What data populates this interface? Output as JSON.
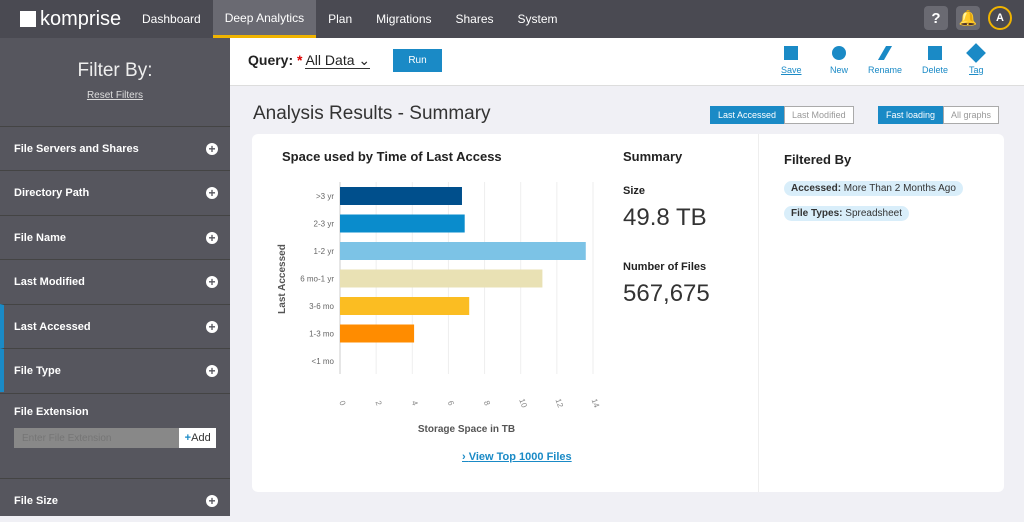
{
  "header": {
    "logo": "komprise",
    "nav": [
      "Dashboard",
      "Deep Analytics",
      "Plan",
      "Migrations",
      "Shares",
      "System"
    ],
    "active": "Deep Analytics",
    "help": "?",
    "avatar": "A"
  },
  "sidebar": {
    "title": "Filter By:",
    "reset": "Reset Filters",
    "items": [
      {
        "label": "File Servers and Shares"
      },
      {
        "label": "Directory Path"
      },
      {
        "label": "File Name"
      },
      {
        "label": "Last Modified"
      },
      {
        "label": "Last Accessed"
      },
      {
        "label": "File Type"
      }
    ],
    "extension": {
      "label": "File Extension",
      "placeholder": "Enter File Extension",
      "add": "Add"
    },
    "file_size": "File Size"
  },
  "query": {
    "label": "Query:",
    "required": "*",
    "value": "All Data",
    "run": "Run"
  },
  "toolbar": {
    "save": "Save",
    "new": "New",
    "rename": "Rename",
    "delete": "Delete",
    "tag": "Tag"
  },
  "page": {
    "title": "Analysis Results - Summary",
    "toggle1": [
      "Last Accessed",
      "Last Modified"
    ],
    "toggle2": [
      "Fast loading",
      "All graphs"
    ]
  },
  "summary": {
    "title": "Summary",
    "size_label": "Size",
    "size": "49.8 TB",
    "files_label": "Number of Files",
    "files": "567,675"
  },
  "filtered": {
    "title": "Filtered By",
    "chips": [
      {
        "key": "Accessed:",
        "value": " More Than 2 Months Ago"
      },
      {
        "key": "File Types:",
        "value": " Spreadsheet"
      }
    ]
  },
  "link": "View Top 1000 Files",
  "chart_data": {
    "type": "bar",
    "orientation": "horizontal",
    "title": "Space used by Time of Last Access",
    "xlabel": "Storage Space in TB",
    "ylabel": "Last Accessed",
    "categories": [
      ">3 yr",
      "2-3 yr",
      "1-2 yr",
      "6 mo-1 yr",
      "3-6 mo",
      "1-3 mo",
      "<1 mo"
    ],
    "values": [
      6.75,
      6.9,
      13.6,
      11.2,
      7.15,
      4.1,
      0
    ],
    "colors": [
      "#004f8c",
      "#0a8ccc",
      "#7cc3e6",
      "#e9e1b4",
      "#fbbd22",
      "#ff8c00",
      "#cccccc"
    ],
    "xlim": [
      0,
      14
    ],
    "xticks": [
      0,
      2,
      4,
      6,
      8,
      10,
      12,
      14
    ],
    "grid": true
  }
}
